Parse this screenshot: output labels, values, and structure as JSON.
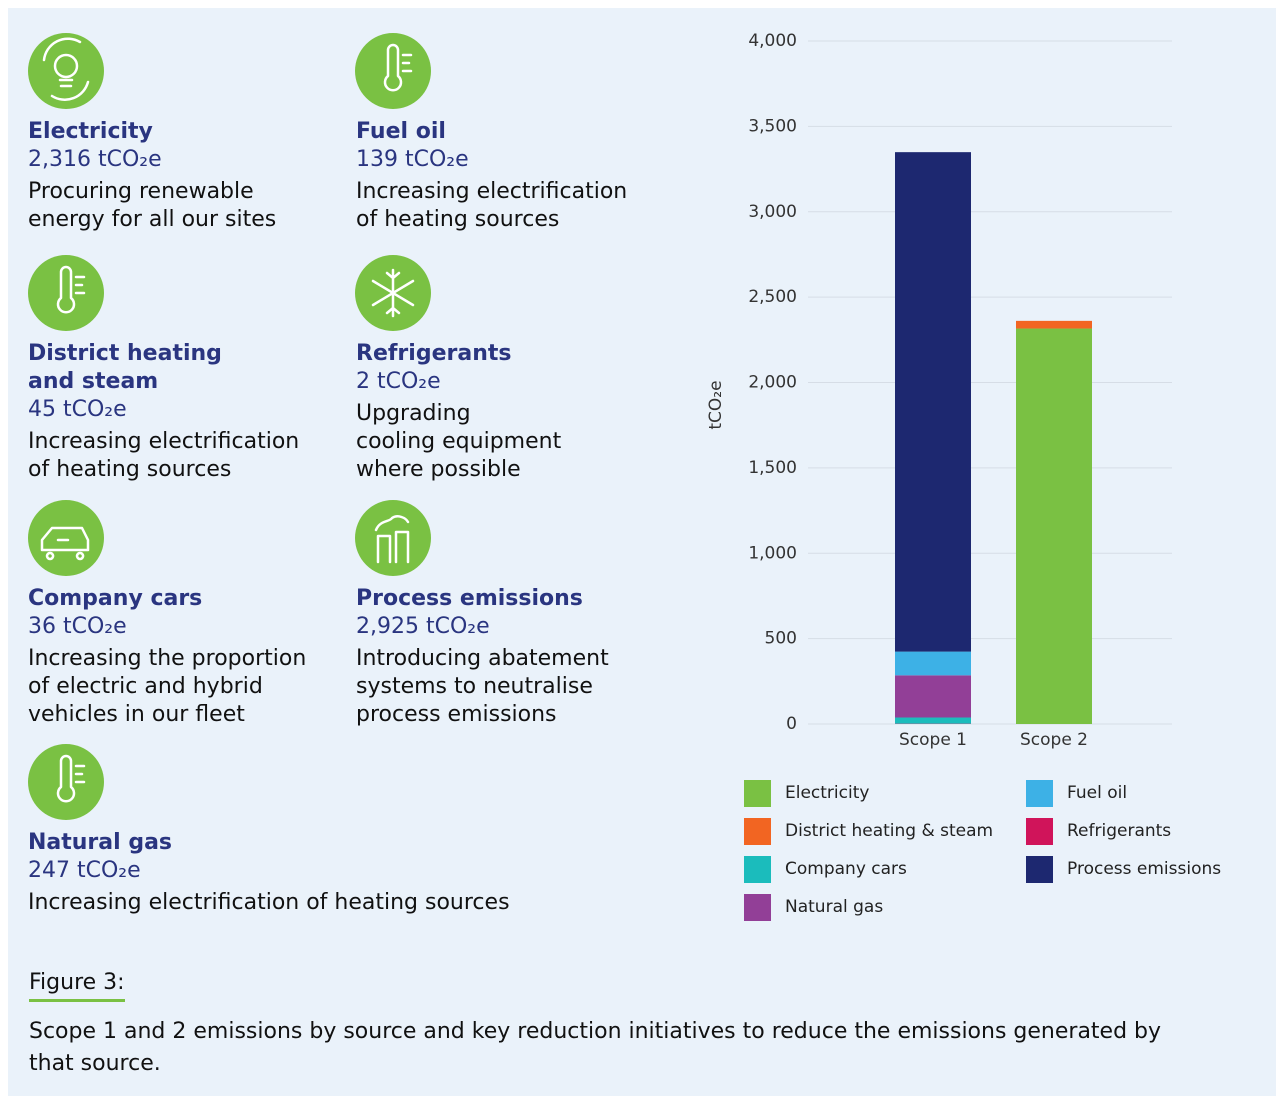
{
  "items": [
    {
      "name": [
        "Electricity"
      ],
      "amount": "2,316 tCO₂e",
      "description": [
        "Procuring renewable",
        "energy for all our sites"
      ]
    },
    {
      "name": [
        "Fuel oil"
      ],
      "amount": "139 tCO₂e",
      "description": [
        "Increasing electrification",
        "of heating sources"
      ]
    },
    {
      "name": [
        "District heating",
        "and steam"
      ],
      "amount": "45 tCO₂e",
      "description": [
        "Increasing electrification",
        "of heating sources"
      ]
    },
    {
      "name": [
        "Refrigerants"
      ],
      "amount": "2 tCO₂e",
      "description": [
        "Upgrading",
        "cooling equipment",
        "where possible"
      ]
    },
    {
      "name": [
        "Company cars"
      ],
      "amount": "36 tCO₂e",
      "description": [
        "Increasing the proportion",
        "of electric and hybrid",
        "vehicles in our fleet"
      ]
    },
    {
      "name": [
        "Process emissions"
      ],
      "amount": "2,925 tCO₂e",
      "description": [
        "Introducing abatement",
        "systems to neutralise",
        "process emissions"
      ]
    },
    {
      "name": [
        "Natural gas"
      ],
      "amount": "247 tCO₂e",
      "description": [
        "Increasing electrification of heating sources"
      ]
    }
  ],
  "chart_data": {
    "type": "bar",
    "stacked": true,
    "y_label": "tCO₂e",
    "categories": [
      "Scope 1",
      "Scope 2"
    ],
    "series": [
      {
        "name": "Electricity",
        "color": "#7ac143",
        "values": [
          null,
          2316
        ]
      },
      {
        "name": "District heating & steam",
        "color": "#f26522",
        "values": [
          null,
          45
        ]
      },
      {
        "name": "Refrigerants",
        "color": "#d0145a",
        "values": [
          2,
          null
        ]
      },
      {
        "name": "Company cars",
        "color": "#1bbcbc",
        "values": [
          36,
          null
        ]
      },
      {
        "name": "Natural gas",
        "color": "#923f97",
        "values": [
          247,
          null
        ]
      },
      {
        "name": "Fuel oil",
        "color": "#3db1e6",
        "values": [
          139,
          null
        ]
      },
      {
        "name": "Process emissions",
        "color": "#1d2870",
        "values": [
          2925,
          null
        ]
      }
    ],
    "ylim": [
      0,
      4000
    ],
    "yticks": [
      0,
      500,
      {
        "value": 1000,
        "label": "1,000"
      },
      {
        "value": 1500,
        "label": "1,500"
      },
      {
        "value": 2000,
        "label": "2,000"
      },
      {
        "value": 2500,
        "label": "2,500"
      },
      {
        "value": 3000,
        "label": "3,000"
      },
      {
        "value": 3500,
        "label": "3,500"
      },
      {
        "value": 4000,
        "label": "4,000"
      }
    ],
    "grid": true
  },
  "figure": {
    "label": "Figure 3:",
    "caption": [
      "Scope 1 and 2 emissions by source and key reduction initiatives to reduce the emissions generated by",
      "that source."
    ]
  }
}
